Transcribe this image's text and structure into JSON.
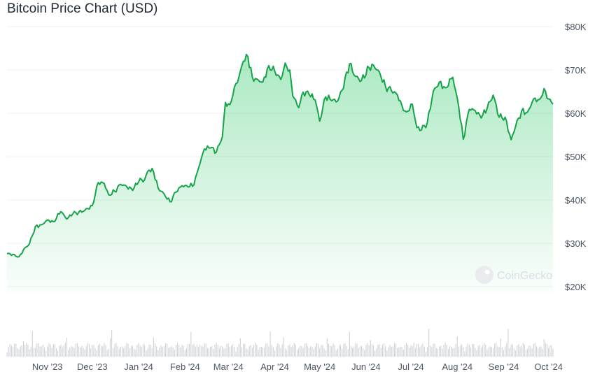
{
  "chart_data": {
    "type": "area",
    "title": "Bitcoin Price Chart (USD)",
    "xlabel": "",
    "ylabel": "",
    "ylim": [
      20000,
      80000
    ],
    "y_ticks": [
      20000,
      30000,
      40000,
      50000,
      60000,
      70000,
      80000
    ],
    "y_tick_labels": [
      "$20K",
      "$30K",
      "$40K",
      "$50K",
      "$60K",
      "$70K",
      "$80K"
    ],
    "x_ticks": [
      "Nov '23",
      "Dec '23",
      "Jan '24",
      "Feb '24",
      "Mar '24",
      "Apr '24",
      "May '24",
      "Jun '24",
      "Jul '24",
      "Aug '24",
      "Sep '24",
      "Oct '24"
    ],
    "x_range": [
      "2023-10-05",
      "2024-10-04"
    ],
    "grid": true,
    "line_color": "#16a34a",
    "fill_color": "#22c55e",
    "series": [
      {
        "values": [
          [
            "2023-10-05",
            27600
          ],
          [
            "2023-10-10",
            27400
          ],
          [
            "2023-10-13",
            26900
          ],
          [
            "2023-10-16",
            28500
          ],
          [
            "2023-10-20",
            29900
          ],
          [
            "2023-10-24",
            33900
          ],
          [
            "2023-10-28",
            34300
          ],
          [
            "2023-11-01",
            35400
          ],
          [
            "2023-11-05",
            35000
          ],
          [
            "2023-11-10",
            37300
          ],
          [
            "2023-11-14",
            35600
          ],
          [
            "2023-11-18",
            36800
          ],
          [
            "2023-11-22",
            37200
          ],
          [
            "2023-11-26",
            37600
          ],
          [
            "2023-12-01",
            38700
          ],
          [
            "2023-12-05",
            44000
          ],
          [
            "2023-12-09",
            43800
          ],
          [
            "2023-12-12",
            41200
          ],
          [
            "2023-12-16",
            42000
          ],
          [
            "2023-12-20",
            43600
          ],
          [
            "2023-12-24",
            43100
          ],
          [
            "2023-12-28",
            42200
          ],
          [
            "2024-01-02",
            45000
          ],
          [
            "2024-01-04",
            44200
          ],
          [
            "2024-01-08",
            46900
          ],
          [
            "2024-01-11",
            46500
          ],
          [
            "2024-01-14",
            42800
          ],
          [
            "2024-01-18",
            41400
          ],
          [
            "2024-01-22",
            39600
          ],
          [
            "2024-01-26",
            41800
          ],
          [
            "2024-01-30",
            43300
          ],
          [
            "2024-02-03",
            43000
          ],
          [
            "2024-02-07",
            43500
          ],
          [
            "2024-02-10",
            47300
          ],
          [
            "2024-02-14",
            51800
          ],
          [
            "2024-02-18",
            52000
          ],
          [
            "2024-02-22",
            51100
          ],
          [
            "2024-02-26",
            54600
          ],
          [
            "2024-02-28",
            62500
          ],
          [
            "2024-03-02",
            62000
          ],
          [
            "2024-03-05",
            66000
          ],
          [
            "2024-03-08",
            68300
          ],
          [
            "2024-03-11",
            72000
          ],
          [
            "2024-03-14",
            73100
          ],
          [
            "2024-03-17",
            68300
          ],
          [
            "2024-03-20",
            67900
          ],
          [
            "2024-03-24",
            67200
          ],
          [
            "2024-03-28",
            71000
          ],
          [
            "2024-04-01",
            69700
          ],
          [
            "2024-04-05",
            67800
          ],
          [
            "2024-04-08",
            71600
          ],
          [
            "2024-04-11",
            70000
          ],
          [
            "2024-04-13",
            64000
          ],
          [
            "2024-04-17",
            61300
          ],
          [
            "2024-04-20",
            64900
          ],
          [
            "2024-04-24",
            64300
          ],
          [
            "2024-04-28",
            63100
          ],
          [
            "2024-05-01",
            58200
          ],
          [
            "2024-05-05",
            63800
          ],
          [
            "2024-05-09",
            62900
          ],
          [
            "2024-05-13",
            62800
          ],
          [
            "2024-05-16",
            65300
          ],
          [
            "2024-05-21",
            71400
          ],
          [
            "2024-05-25",
            68500
          ],
          [
            "2024-05-29",
            67600
          ],
          [
            "2024-06-03",
            70500
          ],
          [
            "2024-06-06",
            71100
          ],
          [
            "2024-06-10",
            69500
          ],
          [
            "2024-06-14",
            66200
          ],
          [
            "2024-06-18",
            65200
          ],
          [
            "2024-06-22",
            64200
          ],
          [
            "2024-06-25",
            61800
          ],
          [
            "2024-06-28",
            60300
          ],
          [
            "2024-07-02",
            62100
          ],
          [
            "2024-07-05",
            56700
          ],
          [
            "2024-07-08",
            56100
          ],
          [
            "2024-07-12",
            57900
          ],
          [
            "2024-07-16",
            65100
          ],
          [
            "2024-07-20",
            67200
          ],
          [
            "2024-07-24",
            65900
          ],
          [
            "2024-07-29",
            68300
          ],
          [
            "2024-08-02",
            61400
          ],
          [
            "2024-08-05",
            54000
          ],
          [
            "2024-08-09",
            60900
          ],
          [
            "2024-08-13",
            60600
          ],
          [
            "2024-08-17",
            58900
          ],
          [
            "2024-08-21",
            61200
          ],
          [
            "2024-08-25",
            64200
          ],
          [
            "2024-08-29",
            59100
          ],
          [
            "2024-09-02",
            59100
          ],
          [
            "2024-09-06",
            53900
          ],
          [
            "2024-09-09",
            57000
          ],
          [
            "2024-09-13",
            60500
          ],
          [
            "2024-09-17",
            60300
          ],
          [
            "2024-09-21",
            63300
          ],
          [
            "2024-09-25",
            63200
          ],
          [
            "2024-09-28",
            65700
          ],
          [
            "2024-10-01",
            63300
          ],
          [
            "2024-10-04",
            62100
          ]
        ]
      }
    ],
    "volume_bars": true,
    "watermark": "CoinGecko"
  }
}
